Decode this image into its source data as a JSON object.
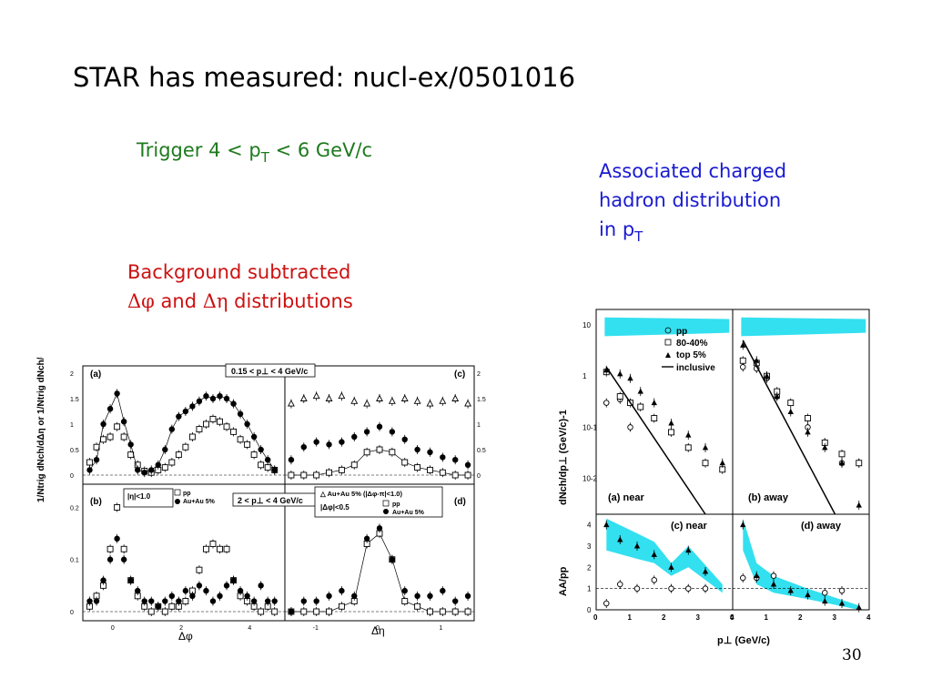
{
  "slide": {
    "title": "STAR has measured: nucl-ex/0501016",
    "trigger": {
      "prefix": "Trigger  4 < p",
      "sub": "T",
      "suffix": " < 6 GeV/c"
    },
    "assoc": {
      "line1": "Associated charged",
      "line2": "hadron distribution",
      "line3_prefix": "in p",
      "line3_sub": "T"
    },
    "bg": {
      "line1": "Background subtracted",
      "phi": "Δφ",
      "and": " and ",
      "eta": "Δη",
      "distributions": " distributions"
    },
    "page_number": "30"
  },
  "left_figure": {
    "panel_labels": [
      "(a)",
      "(b)",
      "(c)",
      "(d)"
    ],
    "box_a": "0.15 < p⊥ < 4 GeV/c",
    "box_b": "2 < p⊥ < 4 GeV/c",
    "box_b_eta": "|η|<1.0",
    "box_d_phi": "|Δφ|<0.5",
    "box_d_top": "△ Au+Au 5% (|Δφ-π|<1.0)",
    "legend_pp": "pp",
    "legend_auau": "Au+Au 5%",
    "ylabel": "1/Ntrig dNch/dΔη  or  1/Ntrig dNch/dΔφ",
    "xlabel_left": "Δφ",
    "xlabel_right": "Δη",
    "yticks_top": [
      "2",
      "1.5",
      "1",
      "0.5",
      "0"
    ],
    "yticks_bottom": [
      "0.2",
      "0.1",
      "0"
    ],
    "xticks_phi": [
      "0",
      "2",
      "4"
    ],
    "xticks_eta": [
      "-1",
      "0",
      "1"
    ]
  },
  "right_figure": {
    "legend": [
      "pp",
      "80-40%",
      "top 5%",
      "inclusive"
    ],
    "ylabel_top": "dNch/dp⊥ (GeV/c)-1",
    "ylabel_bottom": "AA/pp",
    "panel_labels": [
      "(a) near",
      "(b) away",
      "(c) near",
      "(d) away"
    ],
    "yticks_top": [
      "10",
      "1",
      "10-1",
      "10-2"
    ],
    "yticks_bottom": [
      "4",
      "3",
      "2",
      "1",
      "0"
    ],
    "xticks": [
      "0",
      "1",
      "2",
      "3",
      "4"
    ],
    "xlabel": "p⊥  (GeV/c)",
    "band_color": "#33e0f0"
  },
  "chart_data": [
    {
      "type": "scatter",
      "title": "",
      "panels": [
        {
          "label": "(a)",
          "xlabel": "Δφ",
          "xlim": [
            -0.9,
            5.0
          ],
          "ylim": [
            0,
            2
          ],
          "series": [
            {
              "name": "pp",
              "marker": "open-square",
              "x": [
                -0.7,
                -0.5,
                -0.3,
                -0.1,
                0.1,
                0.3,
                0.5,
                0.7,
                0.9,
                1.1,
                1.3,
                1.5,
                1.7,
                1.9,
                2.1,
                2.3,
                2.5,
                2.7,
                2.9,
                3.1,
                3.3,
                3.5,
                3.7,
                3.9,
                4.1,
                4.3,
                4.5,
                4.7
              ],
              "y": [
                0.25,
                0.55,
                0.7,
                0.75,
                0.95,
                0.75,
                0.4,
                0.2,
                0.08,
                0.05,
                0.1,
                0.15,
                0.25,
                0.4,
                0.55,
                0.75,
                0.9,
                1.0,
                1.1,
                1.05,
                0.95,
                0.85,
                0.7,
                0.6,
                0.4,
                0.2,
                0.15,
                0.1
              ]
            },
            {
              "name": "Au+Au 5%",
              "marker": "filled-circle",
              "x": [
                -0.7,
                -0.5,
                -0.3,
                -0.1,
                0.1,
                0.3,
                0.5,
                0.7,
                0.9,
                1.1,
                1.3,
                1.5,
                1.7,
                1.9,
                2.1,
                2.3,
                2.5,
                2.7,
                2.9,
                3.1,
                3.3,
                3.5,
                3.7,
                3.9,
                4.1,
                4.3,
                4.5,
                4.7
              ],
              "y": [
                0.1,
                0.3,
                1.0,
                1.3,
                1.6,
                1.05,
                0.6,
                0.1,
                0.05,
                0.1,
                0.2,
                0.5,
                0.9,
                1.15,
                1.25,
                1.35,
                1.45,
                1.55,
                1.5,
                1.55,
                1.5,
                1.4,
                1.2,
                1.0,
                0.75,
                0.5,
                0.3,
                0.1
              ]
            }
          ]
        },
        {
          "label": "(b)",
          "xlabel": "Δφ",
          "xlim": [
            -0.9,
            5.0
          ],
          "ylim": [
            0,
            0.22
          ],
          "series": [
            {
              "name": "pp",
              "marker": "open-square",
              "x": [
                -0.7,
                -0.5,
                -0.3,
                -0.1,
                0.1,
                0.3,
                0.5,
                0.7,
                0.9,
                1.1,
                1.3,
                1.5,
                1.7,
                1.9,
                2.1,
                2.3,
                2.5,
                2.7,
                2.9,
                3.1,
                3.3,
                3.5,
                3.7,
                3.9,
                4.1,
                4.3,
                4.5,
                4.7
              ],
              "y": [
                0.01,
                0.03,
                0.05,
                0.12,
                0.2,
                0.12,
                0.06,
                0.03,
                0.01,
                0.0,
                0.01,
                0.0,
                0.01,
                0.01,
                0.02,
                0.04,
                0.08,
                0.12,
                0.13,
                0.12,
                0.12,
                0.06,
                0.03,
                0.02,
                0.01,
                0.0,
                0.01,
                0.0
              ]
            },
            {
              "name": "Au+Au 5%",
              "marker": "filled-circle",
              "x": [
                -0.7,
                -0.5,
                -0.3,
                -0.1,
                0.1,
                0.3,
                0.5,
                0.7,
                0.9,
                1.1,
                1.3,
                1.5,
                1.7,
                1.9,
                2.1,
                2.3,
                2.5,
                2.7,
                2.9,
                3.1,
                3.3,
                3.5,
                3.7,
                3.9,
                4.1,
                4.3,
                4.5,
                4.7
              ],
              "y": [
                0.02,
                0.02,
                0.06,
                0.1,
                0.14,
                0.1,
                0.06,
                0.04,
                0.02,
                0.02,
                0.01,
                0.02,
                0.03,
                0.02,
                0.04,
                0.03,
                0.05,
                0.04,
                0.02,
                0.03,
                0.05,
                0.06,
                0.04,
                0.03,
                0.02,
                0.05,
                0.02,
                0.02
              ]
            }
          ]
        },
        {
          "label": "(c)",
          "xlabel": "Δη",
          "xlim": [
            -1.5,
            1.5
          ],
          "ylim": [
            0,
            2
          ],
          "series": [
            {
              "name": "pp",
              "marker": "open-square",
              "x": [
                -1.4,
                -1.2,
                -1.0,
                -0.8,
                -0.6,
                -0.4,
                -0.2,
                0.0,
                0.2,
                0.4,
                0.6,
                0.8,
                1.0,
                1.2,
                1.4
              ],
              "y": [
                0.0,
                0.0,
                0.0,
                0.05,
                0.1,
                0.2,
                0.45,
                0.5,
                0.45,
                0.25,
                0.15,
                0.1,
                0.05,
                0.0,
                0.0
              ]
            },
            {
              "name": "Au+Au 5%",
              "marker": "filled-circle",
              "x": [
                -1.4,
                -1.2,
                -1.0,
                -0.8,
                -0.6,
                -0.4,
                -0.2,
                0.0,
                0.2,
                0.4,
                0.6,
                0.8,
                1.0,
                1.2,
                1.4
              ],
              "y": [
                0.3,
                0.55,
                0.65,
                0.6,
                0.65,
                0.75,
                0.85,
                0.95,
                0.85,
                0.7,
                0.5,
                0.45,
                0.35,
                0.3,
                0.2
              ]
            },
            {
              "name": "Au+Au 5% (|Δφ-π|<1.0)",
              "marker": "open-triangle",
              "x": [
                -1.4,
                -1.2,
                -1.0,
                -0.8,
                -0.6,
                -0.4,
                -0.2,
                0.0,
                0.2,
                0.4,
                0.6,
                0.8,
                1.0,
                1.2,
                1.4
              ],
              "y": [
                1.4,
                1.5,
                1.55,
                1.5,
                1.55,
                1.45,
                1.4,
                1.5,
                1.45,
                1.5,
                1.45,
                1.4,
                1.45,
                1.5,
                1.4
              ]
            }
          ]
        },
        {
          "label": "(d)",
          "xlabel": "Δη",
          "xlim": [
            -1.5,
            1.5
          ],
          "ylim": [
            0,
            0.22
          ],
          "series": [
            {
              "name": "pp",
              "marker": "open-square",
              "x": [
                -1.4,
                -1.2,
                -1.0,
                -0.8,
                -0.6,
                -0.4,
                -0.2,
                0.0,
                0.2,
                0.4,
                0.6,
                0.8,
                1.0,
                1.2,
                1.4
              ],
              "y": [
                0.0,
                0.0,
                0.0,
                0.0,
                0.01,
                0.02,
                0.13,
                0.15,
                0.1,
                0.02,
                0.01,
                0.0,
                0.0,
                0.0,
                0.0
              ]
            },
            {
              "name": "Au+Au 5%",
              "marker": "filled-circle",
              "x": [
                -1.4,
                -1.2,
                -1.0,
                -0.8,
                -0.6,
                -0.4,
                -0.2,
                0.0,
                0.2,
                0.4,
                0.6,
                0.8,
                1.0,
                1.2,
                1.4
              ],
              "y": [
                0.0,
                0.02,
                0.02,
                0.03,
                0.04,
                0.03,
                0.14,
                0.16,
                0.1,
                0.04,
                0.03,
                0.03,
                0.04,
                0.02,
                0.03
              ]
            }
          ]
        }
      ]
    },
    {
      "type": "scatter",
      "title": "",
      "legend": [
        "pp",
        "80-40%",
        "top 5%",
        "inclusive"
      ],
      "panels": [
        {
          "label": "(a) near",
          "xlim": [
            0,
            4
          ],
          "ylim": [
            0.002,
            20
          ],
          "yscale": "log",
          "series": [
            {
              "name": "pp",
              "marker": "open-circle",
              "x": [
                0.3,
                0.7,
                1.0
              ],
              "y": [
                0.3,
                0.35,
                0.1
              ]
            },
            {
              "name": "80-40%",
              "marker": "open-square",
              "x": [
                0.3,
                0.7,
                1.0,
                1.3,
                1.7,
                2.2,
                2.7,
                3.2,
                3.7
              ],
              "y": [
                1.2,
                0.4,
                0.3,
                0.25,
                0.15,
                0.08,
                0.04,
                0.02,
                0.015
              ]
            },
            {
              "name": "top 5%",
              "marker": "filled-triangle",
              "x": [
                0.3,
                0.7,
                1.0,
                1.3,
                1.7,
                2.2,
                2.7,
                3.2,
                3.7
              ],
              "y": [
                1.3,
                1.1,
                0.9,
                0.5,
                0.3,
                0.12,
                0.07,
                0.04,
                0.02
              ]
            },
            {
              "name": "inclusive",
              "marker": "line",
              "x": [
                0.3,
                3.2
              ],
              "y": [
                1.5,
                0.002
              ]
            }
          ]
        },
        {
          "label": "(b) away",
          "xlim": [
            0,
            4
          ],
          "ylim": [
            0.002,
            20
          ],
          "yscale": "log",
          "series": [
            {
              "name": "pp",
              "marker": "open-circle",
              "x": [
                0.3,
                0.7,
                1.0,
                1.3,
                2.2,
                2.7,
                3.2,
                3.7
              ],
              "y": [
                1.5,
                1.4,
                0.9,
                0.4,
                0.1,
                0.05,
                0.02,
                0.02
              ]
            },
            {
              "name": "80-40%",
              "marker": "open-square",
              "x": [
                0.3,
                0.7,
                1.0,
                1.3,
                1.7,
                2.2,
                2.7,
                3.2,
                3.7
              ],
              "y": [
                2.0,
                1.8,
                1.0,
                0.5,
                0.3,
                0.15,
                0.05,
                0.03,
                0.02
              ]
            },
            {
              "name": "top 5%",
              "marker": "filled-triangle",
              "x": [
                0.3,
                0.7,
                1.0,
                1.3,
                1.7,
                2.2,
                2.7,
                3.2,
                3.7
              ],
              "y": [
                4.0,
                2.0,
                1.0,
                0.4,
                0.2,
                0.08,
                0.04,
                0.02,
                0.003
              ]
            },
            {
              "name": "inclusive",
              "marker": "line",
              "x": [
                0.3,
                3.0
              ],
              "y": [
                5.0,
                0.002
              ]
            }
          ]
        },
        {
          "label": "(c) near",
          "xlim": [
            0,
            4
          ],
          "ylim": [
            0,
            4.5
          ],
          "series": [
            {
              "name": "pp",
              "marker": "open-circle",
              "x": [
                0.3,
                0.7,
                1.2,
                1.7,
                2.2,
                2.7,
                3.2
              ],
              "y": [
                0.3,
                1.2,
                1.0,
                1.4,
                1.0,
                1.0,
                1.0
              ]
            },
            {
              "name": "top 5%",
              "marker": "filled-triangle",
              "x": [
                0.3,
                0.7,
                1.2,
                1.7,
                2.2,
                2.7,
                3.2
              ],
              "y": [
                4.0,
                3.3,
                3.0,
                2.6,
                2.0,
                2.8,
                1.8
              ]
            }
          ]
        },
        {
          "label": "(d) away",
          "xlim": [
            0,
            4
          ],
          "ylim": [
            0,
            4.5
          ],
          "series": [
            {
              "name": "pp",
              "marker": "open-circle",
              "x": [
                0.3,
                0.7,
                1.2,
                2.7,
                3.2
              ],
              "y": [
                1.5,
                1.5,
                1.6,
                0.8,
                0.9
              ]
            },
            {
              "name": "top 5%",
              "marker": "filled-triangle",
              "x": [
                0.3,
                0.7,
                1.2,
                1.7,
                2.2,
                2.7,
                3.2,
                3.7
              ],
              "y": [
                4.0,
                1.6,
                1.2,
                0.9,
                0.7,
                0.4,
                0.3,
                0.1
              ]
            }
          ]
        }
      ],
      "xlabel": "p⊥  (GeV/c)"
    }
  ]
}
